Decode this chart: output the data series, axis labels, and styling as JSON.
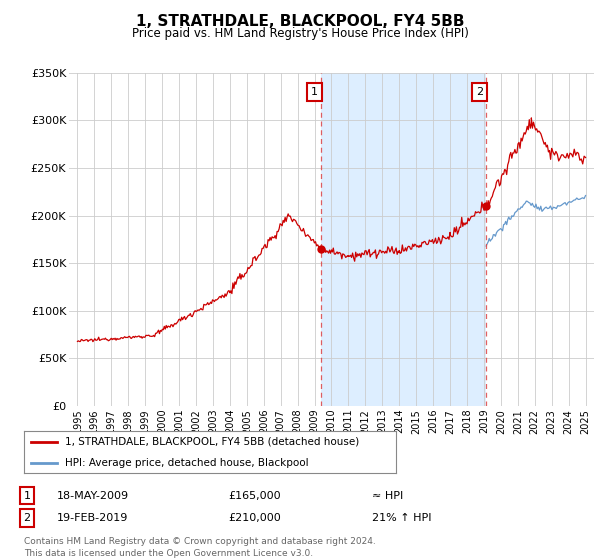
{
  "title": "1, STRATHDALE, BLACKPOOL, FY4 5BB",
  "subtitle": "Price paid vs. HM Land Registry's House Price Index (HPI)",
  "legend_line1": "1, STRATHDALE, BLACKPOOL, FY4 5BB (detached house)",
  "legend_line2": "HPI: Average price, detached house, Blackpool",
  "annotation1_label": "1",
  "annotation1_date": "18-MAY-2009",
  "annotation1_price": "£165,000",
  "annotation1_hpi": "≈ HPI",
  "annotation2_label": "2",
  "annotation2_date": "19-FEB-2019",
  "annotation2_price": "£210,000",
  "annotation2_hpi": "21% ↑ HPI",
  "footer": "Contains HM Land Registry data © Crown copyright and database right 2024.\nThis data is licensed under the Open Government Licence v3.0.",
  "line1_color": "#cc0000",
  "line2_color": "#6699cc",
  "vline_color": "#dd4444",
  "background_color": "#ffffff",
  "plot_bg_color": "#ffffff",
  "shaded_bg_color": "#ddeeff",
  "ylim": [
    0,
    350000
  ],
  "yticks": [
    0,
    50000,
    100000,
    150000,
    200000,
    250000,
    300000,
    350000
  ],
  "ytick_labels": [
    "£0",
    "£50K",
    "£100K",
    "£150K",
    "£200K",
    "£250K",
    "£300K",
    "£350K"
  ],
  "point1_x": 2009.38,
  "point1_y": 165000,
  "point2_x": 2019.13,
  "point2_y": 210000,
  "xmin": 1994.5,
  "xmax": 2025.5
}
